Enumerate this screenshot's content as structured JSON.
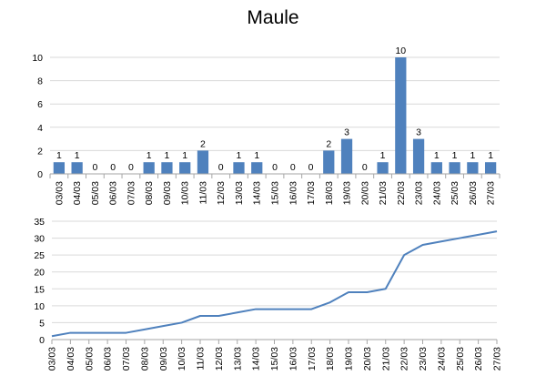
{
  "title": "Maule",
  "chart_data": [
    {
      "type": "bar",
      "categories": [
        "03/03",
        "04/03",
        "05/03",
        "06/03",
        "07/03",
        "08/03",
        "09/03",
        "10/03",
        "11/03",
        "12/03",
        "13/03",
        "14/03",
        "15/03",
        "16/03",
        "17/03",
        "18/03",
        "19/03",
        "20/03",
        "21/03",
        "22/03",
        "23/03",
        "24/03",
        "25/03",
        "26/03",
        "27/03"
      ],
      "values": [
        1,
        1,
        0,
        0,
        0,
        1,
        1,
        1,
        2,
        0,
        1,
        1,
        0,
        0,
        0,
        2,
        3,
        0,
        1,
        10,
        3,
        1,
        1,
        1,
        1
      ],
      "ylim": [
        0,
        10
      ],
      "yticks": [
        0,
        2,
        4,
        6,
        8,
        10
      ],
      "grid": true,
      "data_labels": true,
      "color": "#4f81bd"
    },
    {
      "type": "line",
      "categories": [
        "03/03",
        "04/03",
        "05/03",
        "06/03",
        "07/03",
        "08/03",
        "09/03",
        "10/03",
        "11/03",
        "12/03",
        "13/03",
        "14/03",
        "15/03",
        "16/03",
        "17/03",
        "18/03",
        "19/03",
        "20/03",
        "21/03",
        "22/03",
        "23/03",
        "24/03",
        "25/03",
        "26/03",
        "27/03"
      ],
      "values": [
        1,
        2,
        2,
        2,
        2,
        3,
        4,
        5,
        7,
        7,
        8,
        9,
        9,
        9,
        9,
        11,
        14,
        14,
        15,
        25,
        28,
        29,
        30,
        31,
        32
      ],
      "ylim": [
        0,
        35
      ],
      "yticks": [
        0,
        5,
        10,
        15,
        20,
        25,
        30,
        35
      ],
      "grid": true,
      "color": "#4f81bd"
    }
  ]
}
